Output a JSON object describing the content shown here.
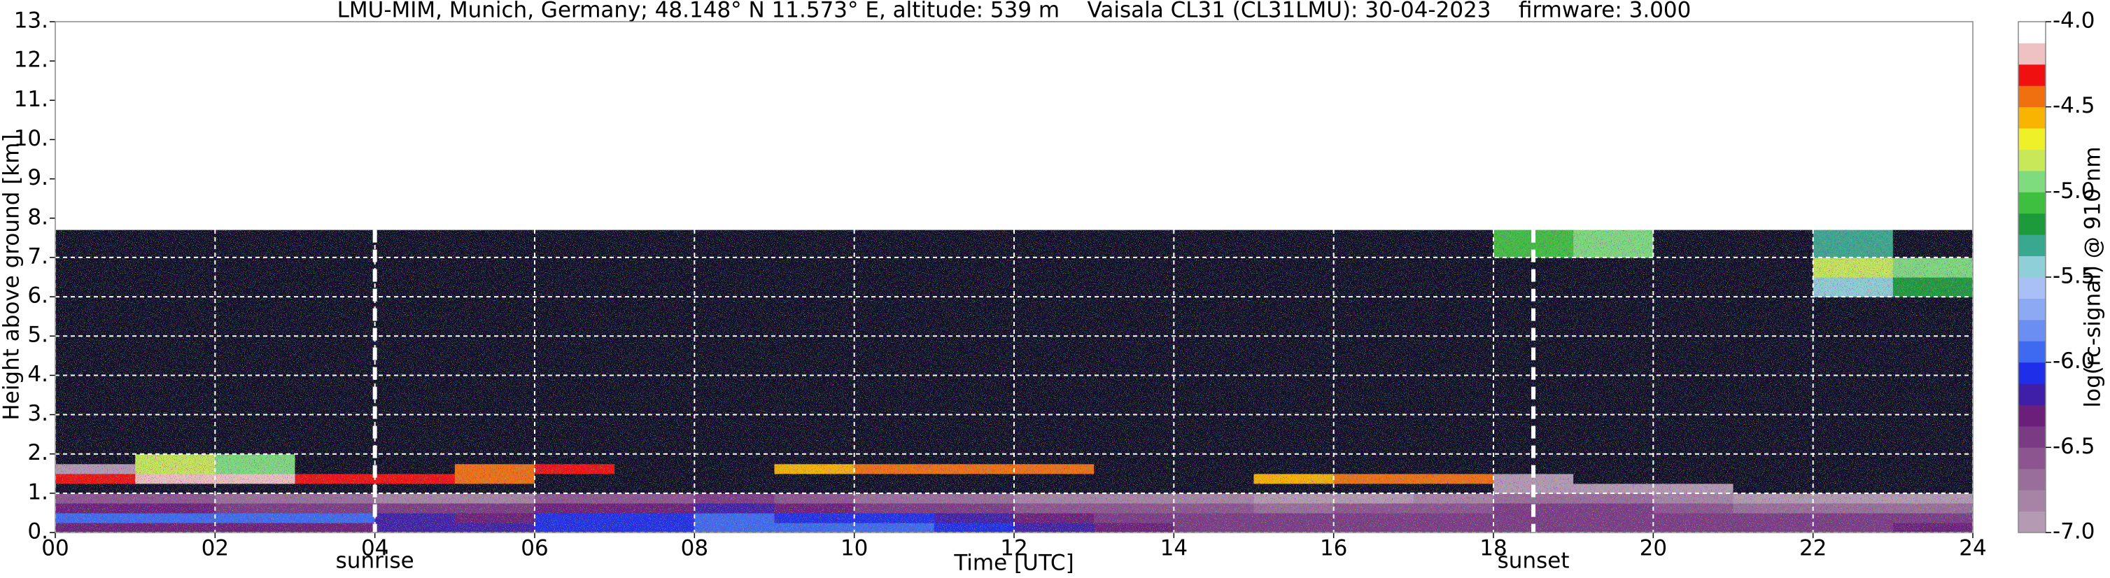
{
  "chart_data": {
    "type": "heatmap",
    "title": "LMU-MIM, Munich, Germany; 48.148° N 11.573° E, altitude: 539 m    Vaisala CL31 (CL31LMU): 30-04-2023    firmware: 3.000",
    "xlabel": "Time [UTC]",
    "ylabel": "Height above ground [km]",
    "xlim": [
      0,
      24
    ],
    "ylim": [
      0,
      13
    ],
    "xticks": [
      {
        "value": 0,
        "label": "00"
      },
      {
        "value": 2,
        "label": "02"
      },
      {
        "value": 4,
        "label": "04"
      },
      {
        "value": 6,
        "label": "06"
      },
      {
        "value": 8,
        "label": "08"
      },
      10,
      12,
      14,
      16,
      18,
      20,
      22,
      24
    ],
    "yticks": [
      {
        "value": 0,
        "label": "0."
      },
      {
        "value": 1,
        "label": "1."
      },
      {
        "value": 2,
        "label": "2."
      },
      {
        "value": 3,
        "label": "3."
      },
      {
        "value": 4,
        "label": "4."
      },
      {
        "value": 5,
        "label": "5."
      },
      {
        "value": 6,
        "label": "6."
      },
      {
        "value": 7,
        "label": "7."
      },
      {
        "value": 8,
        "label": "8."
      },
      {
        "value": 9,
        "label": "9."
      },
      {
        "value": 10,
        "label": "10."
      },
      {
        "value": 11,
        "label": "11."
      },
      {
        "value": 12,
        "label": "12."
      },
      {
        "value": 13,
        "label": "13."
      }
    ],
    "grid": true,
    "annotations": [
      {
        "text": "sunrise",
        "x": 4
      },
      {
        "text": "sunset",
        "x": 18.5
      }
    ],
    "colorbar_label": "log(rc-signal) @ 910 nm",
    "zlim": [
      -7,
      -4
    ],
    "zticks": [
      {
        "value": -4,
        "label": "-4.0"
      },
      -4.5,
      {
        "value": -5,
        "label": "-5.0"
      },
      -5.5,
      {
        "value": -6,
        "label": "-6.0"
      },
      -6.5,
      {
        "value": -7,
        "label": "-7.0"
      }
    ],
    "colorscale": [
      "#b49ab2",
      "#a784a5",
      "#9a6e9a",
      "#8c558f",
      "#7b3b84",
      "#6b1f7a",
      "#3f1fa8",
      "#1f2ee8",
      "#3d6af0",
      "#6a8ef2",
      "#8ea9f4",
      "#a9c0f6",
      "#8fd0d8",
      "#3aa88e",
      "#1c9a3c",
      "#3fbf3f",
      "#7edc7e",
      "#c8e85a",
      "#f0f028",
      "#f8b400",
      "#f07010",
      "#f01010",
      "#eec2c2",
      "#ffffff"
    ],
    "under_color": "#0c0c22",
    "x_edges": [
      0,
      1,
      2,
      3,
      4,
      5,
      6,
      7,
      8,
      9,
      10,
      11,
      12,
      13,
      14,
      15,
      16,
      17,
      18,
      19,
      20,
      21,
      22,
      23,
      24
    ],
    "y_edges": [
      0,
      0.25,
      0.5,
      0.75,
      1,
      1.25,
      1.5,
      1.75,
      2,
      3,
      5,
      6,
      6.5,
      7,
      7.7
    ],
    "z": [
      [
        -6.3,
        -6.3,
        -6.3,
        -6.3,
        -6.2,
        -6.2,
        -6.1,
        -6.1,
        -6.0,
        -6.0,
        -6.0,
        -6.1,
        -6.2,
        -6.3,
        -6.4,
        -6.4,
        -6.4,
        -6.4,
        -6.4,
        -6.4,
        -6.4,
        -6.4,
        -6.4,
        -6.3
      ],
      [
        -5.9,
        -5.9,
        -5.9,
        -6.0,
        -6.2,
        -6.3,
        -6.1,
        -6.1,
        -6.0,
        -6.1,
        -6.1,
        -6.2,
        -6.3,
        -6.4,
        -6.4,
        -6.5,
        -6.5,
        -6.4,
        -6.4,
        -6.4,
        -6.5,
        -6.5,
        -6.5,
        -6.5
      ],
      [
        -6.3,
        -6.3,
        -6.4,
        -6.4,
        -6.5,
        -6.5,
        -6.3,
        -6.3,
        -6.2,
        -6.3,
        -6.4,
        -6.5,
        -6.6,
        -6.6,
        -6.6,
        -6.7,
        -6.6,
        -6.6,
        -6.5,
        -6.5,
        -6.6,
        -6.7,
        -6.7,
        -6.7
      ],
      [
        -6.6,
        -6.6,
        -6.7,
        -6.7,
        -6.8,
        -6.8,
        -6.6,
        -6.6,
        -6.5,
        -6.6,
        -6.7,
        -6.7,
        -6.8,
        -6.8,
        -6.8,
        -6.9,
        -6.9,
        -6.8,
        -6.7,
        -6.7,
        -6.8,
        -6.9,
        -6.9,
        -6.9
      ],
      [
        -7.2,
        -7.2,
        -7.2,
        -7.2,
        -7.2,
        -7.2,
        -7.2,
        -7.2,
        -7.2,
        -7.2,
        -7.2,
        -7.2,
        -7.2,
        -7.2,
        -7.2,
        -7.2,
        -7.2,
        -7.2,
        -6.9,
        -6.9,
        -7.0,
        -7.2,
        -7.2,
        -7.2
      ],
      [
        -4.3,
        -4.2,
        -4.2,
        -4.3,
        -4.3,
        -4.4,
        -7.2,
        -7.2,
        -7.2,
        -7.2,
        -7.2,
        -7.2,
        -7.2,
        -7.2,
        -7.2,
        -4.6,
        -4.4,
        -4.4,
        -6.9,
        -7.1,
        -7.2,
        -7.2,
        -7.2,
        -7.2
      ],
      [
        -7.0,
        -4.8,
        -4.9,
        -7.2,
        -7.2,
        -4.4,
        -4.3,
        -7.2,
        -7.2,
        -4.6,
        -4.5,
        -4.4,
        -4.5,
        -7.2,
        -7.2,
        -7.2,
        -7.2,
        -7.2,
        -7.2,
        -7.2,
        -7.2,
        -7.2,
        -7.2,
        -7.2
      ],
      [
        -7.2,
        -4.8,
        -5.0,
        -7.2,
        -7.2,
        -7.2,
        -7.2,
        -7.2,
        -7.2,
        -7.2,
        -7.2,
        -7.2,
        -7.2,
        -7.2,
        -7.2,
        -7.2,
        -7.2,
        -7.2,
        -7.2,
        -7.2,
        -7.2,
        -7.2,
        -7.2,
        -7.2
      ],
      [
        -7.2,
        -7.2,
        -7.2,
        -7.2,
        -7.2,
        -7.2,
        -7.2,
        -7.2,
        -7.2,
        -7.2,
        -7.2,
        -7.2,
        -7.2,
        -7.2,
        -7.2,
        -7.2,
        -7.2,
        -7.2,
        -7.2,
        -7.2,
        -7.2,
        -7.2,
        -7.2,
        -7.2
      ],
      [
        -7.2,
        -7.2,
        -7.2,
        -7.2,
        -7.2,
        -7.2,
        -7.2,
        -7.2,
        -7.2,
        -7.2,
        -7.2,
        -7.2,
        -7.2,
        -7.2,
        -7.2,
        -7.2,
        -7.2,
        -7.2,
        -7.2,
        -7.2,
        -7.2,
        -7.2,
        -7.2,
        -7.2
      ],
      [
        -7.2,
        -7.2,
        -7.2,
        -7.2,
        -7.2,
        -7.2,
        -7.2,
        -7.2,
        -7.2,
        -7.2,
        -7.2,
        -7.2,
        -7.2,
        -7.2,
        -7.2,
        -7.2,
        -7.2,
        -7.2,
        -7.2,
        -7.2,
        -7.2,
        -7.2,
        -7.2,
        -7.2
      ],
      [
        -7.2,
        -7.2,
        -7.2,
        -7.2,
        -7.2,
        -7.2,
        -7.2,
        -7.2,
        -7.2,
        -7.2,
        -7.2,
        -7.2,
        -7.2,
        -7.2,
        -7.2,
        -7.2,
        -7.2,
        -7.2,
        -7.2,
        -7.2,
        -7.2,
        -7.2,
        -5.5,
        -5.2
      ],
      [
        -7.2,
        -7.2,
        -7.2,
        -7.2,
        -7.2,
        -7.2,
        -7.2,
        -7.2,
        -7.2,
        -7.2,
        -7.2,
        -7.2,
        -7.2,
        -7.2,
        -7.2,
        -7.2,
        -7.2,
        -7.2,
        -7.2,
        -7.2,
        -7.2,
        -7.2,
        -4.8,
        -4.9
      ],
      [
        -7.2,
        -7.2,
        -7.2,
        -7.2,
        -7.2,
        -7.2,
        -7.2,
        -7.2,
        -7.2,
        -7.2,
        -7.2,
        -7.2,
        -7.2,
        -7.2,
        -7.2,
        -7.2,
        -7.2,
        -7.2,
        -5.1,
        -4.9,
        -7.2,
        -7.2,
        -5.3,
        -7.2
      ]
    ]
  }
}
